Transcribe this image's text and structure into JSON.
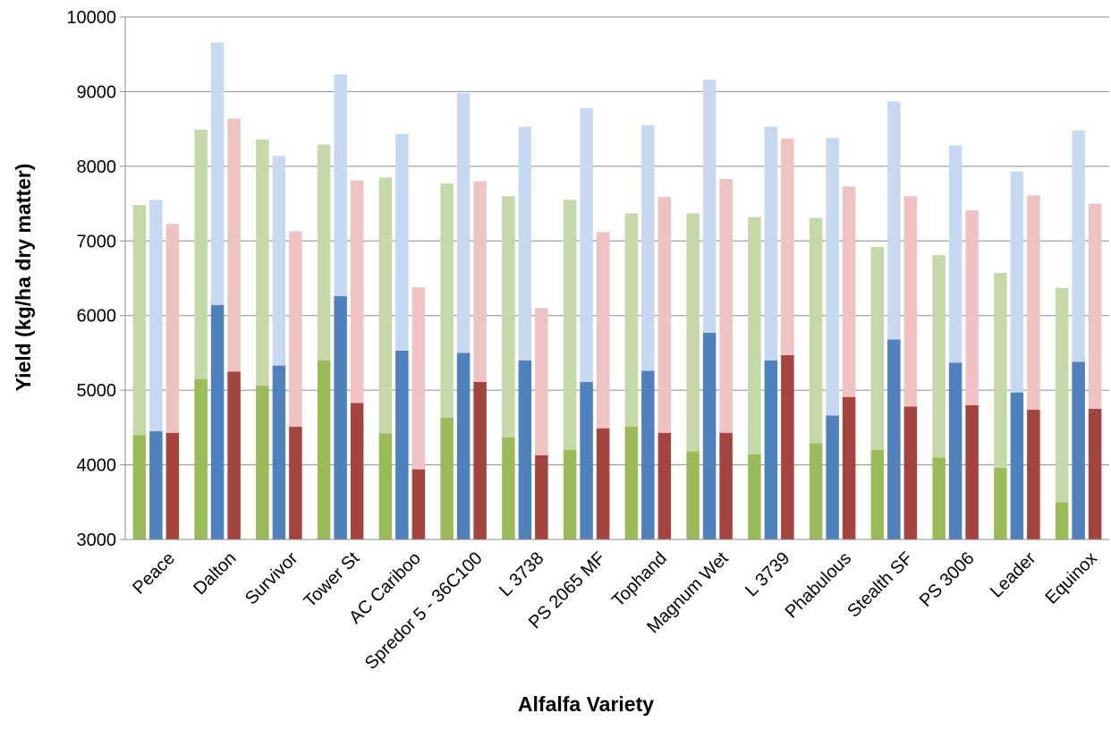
{
  "chart_data": {
    "type": "bar",
    "xlabel": "Alfalfa Variety",
    "ylabel": "Yield (kg/ha dry matter)",
    "ylim": [
      3000,
      10000
    ],
    "yticks": [
      3000,
      4000,
      5000,
      6000,
      7000,
      8000,
      9000,
      10000
    ],
    "grid": true,
    "categories": [
      "Peace",
      "Dalton",
      "Survivor",
      "Tower St",
      "AC Cariboo",
      "Spredor 5 - 36C100",
      "L 3738",
      "PS 2065 MF",
      "Tophand",
      "Magnum Wet",
      "L 3739",
      "Phabulous",
      "Stealth SF",
      "PS 3006",
      "Leader",
      "Equinox"
    ],
    "series": [
      {
        "color": "#9bbb59",
        "light_color": "#c5d9a8",
        "base_values": [
          4400,
          5150,
          5060,
          5400,
          4420,
          4630,
          4370,
          4200,
          4510,
          4180,
          4140,
          4290,
          4200,
          4100,
          3960,
          3500
        ],
        "total_values": [
          7480,
          8490,
          8360,
          8290,
          7850,
          7770,
          7600,
          7550,
          7370,
          7370,
          7320,
          7310,
          6920,
          6810,
          6570,
          6370
        ]
      },
      {
        "color": "#4f81bd",
        "light_color": "#c6d9f1",
        "base_values": [
          4450,
          6140,
          5330,
          6260,
          5530,
          5500,
          5400,
          5110,
          5260,
          5770,
          5400,
          4660,
          5680,
          5370,
          4970,
          5380
        ],
        "total_values": [
          7550,
          9660,
          8140,
          9230,
          8430,
          8980,
          8530,
          8780,
          8550,
          9160,
          8530,
          8380,
          8870,
          8280,
          7930,
          8480
        ]
      },
      {
        "color": "#a5443f",
        "light_color": "#f0c3c3",
        "base_values": [
          4430,
          5250,
          4510,
          4830,
          3940,
          5110,
          4130,
          4490,
          4430,
          4430,
          5470,
          4910,
          4780,
          4800,
          4740,
          4750
        ],
        "total_values": [
          7230,
          8640,
          7130,
          7810,
          6380,
          7800,
          6100,
          7120,
          7590,
          7830,
          8370,
          7730,
          7600,
          7410,
          7610,
          7500
        ]
      }
    ]
  }
}
